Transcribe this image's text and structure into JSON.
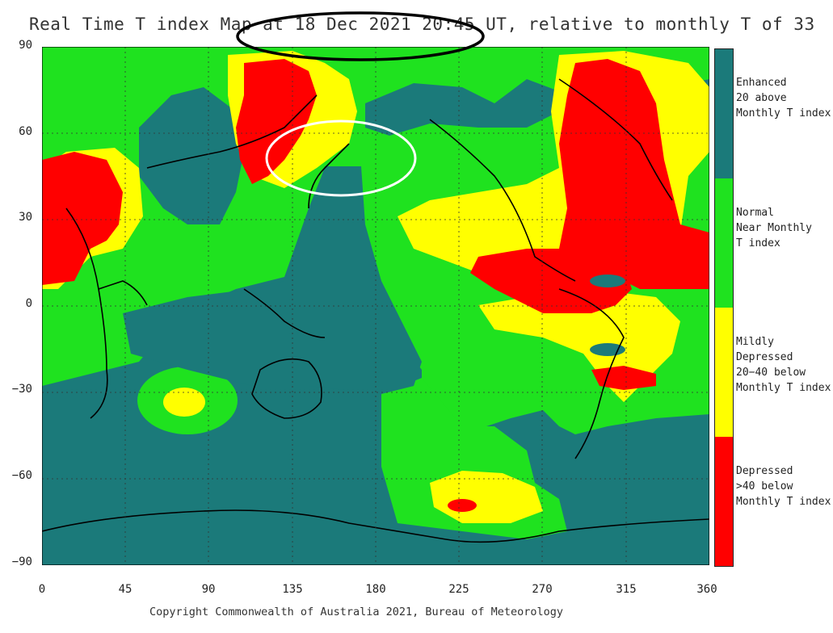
{
  "title": "Real Time T index Map at 18 Dec 2021 20:45 UT, relative to monthly T of 33",
  "copyright": "Copyright Commonwealth of Australia 2021, Bureau of Meteorology",
  "colors": {
    "enhanced": "#1b7a7a",
    "normal": "#1fe21f",
    "mildly": "#ffff00",
    "depressed": "#ff0000"
  },
  "axes": {
    "y_ticks": [
      "90",
      "60",
      "30",
      "0",
      "−30",
      "−60",
      "−90"
    ],
    "x_ticks": [
      "0",
      "45",
      "90",
      "135",
      "180",
      "225",
      "270",
      "315",
      "360"
    ],
    "x_range": [
      0,
      360
    ],
    "y_range": [
      -90,
      90
    ],
    "grid": true
  },
  "legend": [
    {
      "key": "enhanced",
      "label": "Enhanced\n20 above\nMonthly T index"
    },
    {
      "key": "normal",
      "label": "Normal\nNear Monthly\nT index"
    },
    {
      "key": "mildly",
      "label": "Mildly Depressed\n20−40 below\nMonthly T index"
    },
    {
      "key": "depressed",
      "label": "Depressed\n>40 below\nMonthly T index"
    }
  ],
  "annotations": [
    {
      "type": "black-ellipse",
      "around": "date and time in title"
    },
    {
      "type": "white-ellipse",
      "around": "Japan / Sea of Okhotsk region"
    }
  ]
}
